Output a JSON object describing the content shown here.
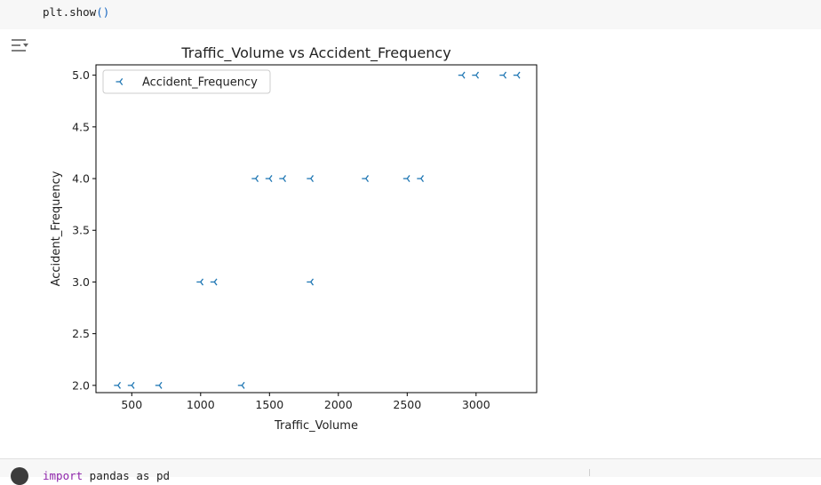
{
  "cell_top": {
    "code": "plt.show",
    "paren": "()"
  },
  "cell_bottom": {
    "kw": "import",
    "rest": " pandas as pd"
  },
  "toggle_icon": "output-toggle-icon",
  "chart_data": {
    "type": "scatter",
    "title": "Traffic_Volume vs Accident_Frequency",
    "xlabel": "Traffic_Volume",
    "ylabel": "Accident_Frequency",
    "xlim": [
      240,
      3440
    ],
    "ylim": [
      1.93,
      5.1
    ],
    "xticks": [
      500,
      1000,
      1500,
      2000,
      2500,
      3000
    ],
    "yticks": [
      2.0,
      2.5,
      3.0,
      3.5,
      4.0,
      4.5,
      5.0
    ],
    "legend": "upper-left",
    "marker": "tri_left",
    "color": "#1f77b4",
    "series": [
      {
        "name": "Accident_Frequency",
        "x": [
          400,
          500,
          700,
          1000,
          1100,
          1300,
          1400,
          1500,
          1600,
          1800,
          1800,
          2200,
          2500,
          2600,
          2900,
          3000,
          3200,
          3300
        ],
        "y": [
          2,
          2,
          2,
          3,
          3,
          2,
          4,
          4,
          4,
          4,
          3,
          4,
          4,
          4,
          5,
          5,
          5,
          5
        ]
      }
    ]
  }
}
